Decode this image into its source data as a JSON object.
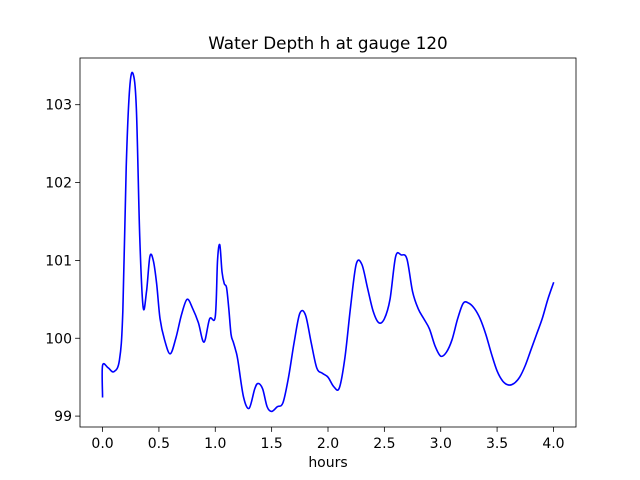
{
  "chart_data": {
    "type": "line",
    "title": "Water Depth h at gauge 120",
    "xlabel": "hours",
    "ylabel": "",
    "xlim": [
      -0.2,
      4.2
    ],
    "ylim": [
      98.86,
      103.6
    ],
    "xticks": [
      0.0,
      0.5,
      1.0,
      1.5,
      2.0,
      2.5,
      3.0,
      3.5,
      4.0
    ],
    "xtick_labels": [
      "0.0",
      "0.5",
      "1.0",
      "1.5",
      "2.0",
      "2.5",
      "3.0",
      "3.5",
      "4.0"
    ],
    "yticks": [
      99,
      100,
      101,
      102,
      103
    ],
    "ytick_labels": [
      "99",
      "100",
      "101",
      "102",
      "103"
    ],
    "grid": false,
    "legend": "none",
    "series": [
      {
        "color": "#0000ff",
        "x": [
          0.0,
          0.0,
          0.05,
          0.1,
          0.15,
          0.18,
          0.21,
          0.24,
          0.27,
          0.3,
          0.33,
          0.36,
          0.39,
          0.42,
          0.45,
          0.48,
          0.51,
          0.55,
          0.6,
          0.65,
          0.7,
          0.75,
          0.8,
          0.85,
          0.9,
          0.95,
          1.0,
          1.02,
          1.04,
          1.06,
          1.08,
          1.1,
          1.12,
          1.14,
          1.16,
          1.18,
          1.2,
          1.25,
          1.3,
          1.35,
          1.38,
          1.42,
          1.46,
          1.5,
          1.55,
          1.6,
          1.65,
          1.7,
          1.75,
          1.8,
          1.85,
          1.9,
          1.95,
          2.0,
          2.05,
          2.1,
          2.15,
          2.2,
          2.25,
          2.3,
          2.35,
          2.4,
          2.45,
          2.5,
          2.55,
          2.6,
          2.65,
          2.7,
          2.75,
          2.8,
          2.85,
          2.9,
          2.95,
          3.0,
          3.05,
          3.1,
          3.15,
          3.2,
          3.25,
          3.3,
          3.35,
          3.4,
          3.45,
          3.5,
          3.55,
          3.6,
          3.65,
          3.7,
          3.75,
          3.8,
          3.85,
          3.9,
          3.95,
          4.0
        ],
        "y": [
          99.25,
          99.65,
          99.62,
          99.57,
          99.72,
          100.35,
          102.2,
          103.2,
          103.4,
          102.95,
          101.3,
          100.4,
          100.6,
          101.05,
          101.0,
          100.7,
          100.25,
          99.98,
          99.8,
          100.0,
          100.3,
          100.5,
          100.38,
          100.2,
          99.95,
          100.25,
          100.28,
          101.0,
          101.2,
          100.85,
          100.7,
          100.65,
          100.38,
          100.05,
          99.95,
          99.85,
          99.72,
          99.25,
          99.1,
          99.35,
          99.42,
          99.35,
          99.12,
          99.06,
          99.12,
          99.17,
          99.5,
          99.95,
          100.32,
          100.3,
          99.95,
          99.62,
          99.55,
          99.5,
          99.38,
          99.36,
          99.75,
          100.4,
          100.95,
          100.95,
          100.65,
          100.35,
          100.2,
          100.25,
          100.5,
          101.05,
          101.07,
          101.02,
          100.6,
          100.38,
          100.25,
          100.12,
          99.9,
          99.77,
          99.82,
          99.98,
          100.25,
          100.45,
          100.45,
          100.38,
          100.25,
          100.05,
          99.8,
          99.58,
          99.45,
          99.4,
          99.42,
          99.5,
          99.65,
          99.85,
          100.05,
          100.25,
          100.5,
          100.71
        ]
      }
    ]
  }
}
